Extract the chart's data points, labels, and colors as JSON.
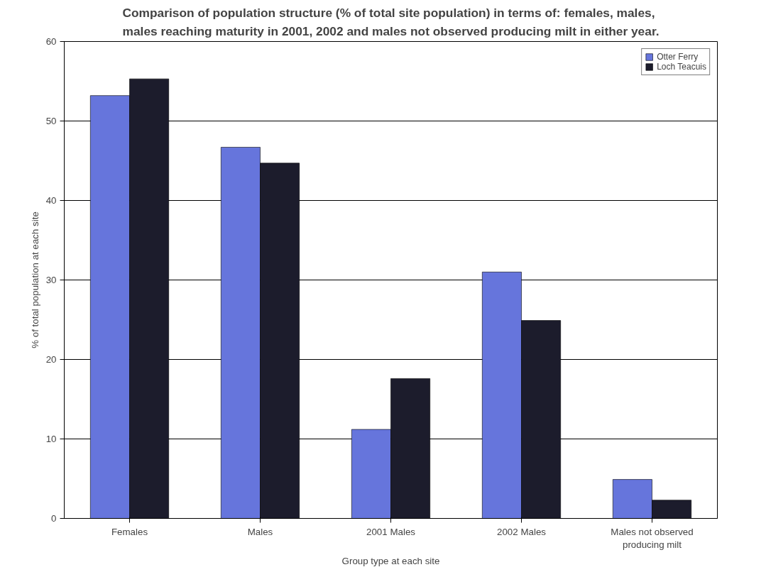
{
  "chart_data": {
    "type": "bar",
    "title": "Comparison of population structure (% of total site population) in terms of: females, males, males reaching maturity in 2001, 2002 and males not observed producing milt in either year.",
    "xlabel": "Group type at each site",
    "ylabel": "% of total population at each site",
    "categories": [
      "Females",
      "Males",
      "2001 Males",
      "2002 Males",
      "Males not observed producing milt"
    ],
    "series": [
      {
        "name": "Otter Ferry",
        "color": "#6675dc",
        "values": [
          53.2,
          46.7,
          11.2,
          31.0,
          4.9
        ]
      },
      {
        "name": "Loch Teacuis",
        "color": "#1c1c2c",
        "values": [
          55.3,
          44.7,
          17.6,
          24.9,
          2.3
        ]
      }
    ],
    "ylim": [
      0,
      60
    ],
    "yticks": [
      0,
      10,
      20,
      30,
      40,
      50,
      60
    ],
    "grid": "y",
    "legend": "top right"
  }
}
